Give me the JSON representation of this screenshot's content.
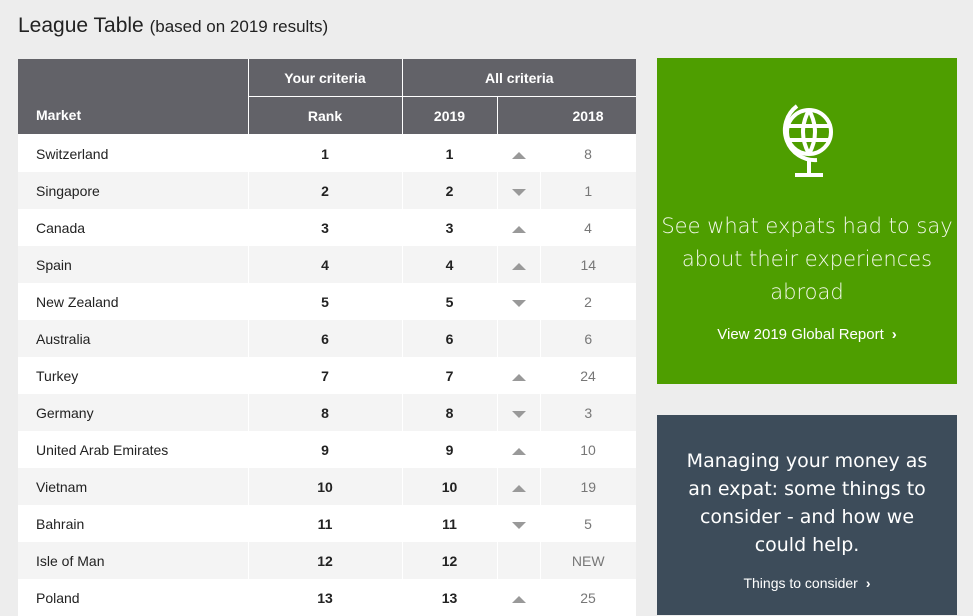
{
  "title": "League Table",
  "subtitle": "(based on 2019 results)",
  "headers": {
    "market": "Market",
    "your_criteria": "Your criteria",
    "rank": "Rank",
    "all_criteria": "All criteria",
    "y2019": "2019",
    "y2018": "2018"
  },
  "rows": [
    {
      "market": "Switzerland",
      "rank": "1",
      "y2019": "1",
      "trend": "up",
      "y2018": "8"
    },
    {
      "market": "Singapore",
      "rank": "2",
      "y2019": "2",
      "trend": "down",
      "y2018": "1"
    },
    {
      "market": "Canada",
      "rank": "3",
      "y2019": "3",
      "trend": "up",
      "y2018": "4"
    },
    {
      "market": "Spain",
      "rank": "4",
      "y2019": "4",
      "trend": "up",
      "y2018": "14"
    },
    {
      "market": "New Zealand",
      "rank": "5",
      "y2019": "5",
      "trend": "down",
      "y2018": "2"
    },
    {
      "market": "Australia",
      "rank": "6",
      "y2019": "6",
      "trend": "none",
      "y2018": "6"
    },
    {
      "market": "Turkey",
      "rank": "7",
      "y2019": "7",
      "trend": "up",
      "y2018": "24"
    },
    {
      "market": "Germany",
      "rank": "8",
      "y2019": "8",
      "trend": "down",
      "y2018": "3"
    },
    {
      "market": "United Arab Emirates",
      "rank": "9",
      "y2019": "9",
      "trend": "up",
      "y2018": "10"
    },
    {
      "market": "Vietnam",
      "rank": "10",
      "y2019": "10",
      "trend": "up",
      "y2018": "19"
    },
    {
      "market": "Bahrain",
      "rank": "11",
      "y2019": "11",
      "trend": "down",
      "y2018": "5"
    },
    {
      "market": "Isle of Man",
      "rank": "12",
      "y2019": "12",
      "trend": "none",
      "y2018": "NEW"
    },
    {
      "market": "Poland",
      "rank": "13",
      "y2019": "13",
      "trend": "up",
      "y2018": "25"
    }
  ],
  "promo": {
    "icon": "globe-icon",
    "message": "See what expats had to say about their experiences abroad",
    "link": "View 2019 Global Report",
    "color": "#4e9e00"
  },
  "money": {
    "message": "Managing your money as an expat: some things to consider - and how we could help.",
    "link": "Things to consider",
    "color": "#3d4c5a"
  }
}
